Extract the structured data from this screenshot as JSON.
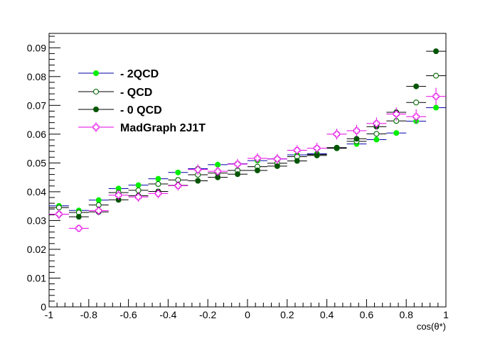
{
  "chart_data": {
    "type": "scatter",
    "title": "",
    "xlabel": "cos(θ*)",
    "ylabel": "",
    "xlim": [
      -1,
      1
    ],
    "ylim": [
      0,
      0.095
    ],
    "grid": false,
    "legend_position": "top-left",
    "x_ticks": [
      "-1",
      "-0.8",
      "-0.6",
      "-0.4",
      "-0.2",
      "0",
      "0.2",
      "0.4",
      "0.6",
      "0.8",
      "1"
    ],
    "y_ticks": [
      "0",
      "0.01",
      "0.02",
      "0.03",
      "0.04",
      "0.05",
      "0.06",
      "0.07",
      "0.08",
      "0.09"
    ],
    "x": [
      -0.95,
      -0.85,
      -0.75,
      -0.65,
      -0.55,
      -0.45,
      -0.35,
      -0.25,
      -0.15,
      -0.05,
      0.05,
      0.15,
      0.25,
      0.35,
      0.45,
      0.55,
      0.65,
      0.75,
      0.85,
      0.95
    ],
    "series": [
      {
        "name": "- 2QCD",
        "marker": "filled-circle",
        "color": "#00ee00",
        "line_color": "#0000aa",
        "values": [
          0.0351,
          0.0335,
          0.0371,
          0.0411,
          0.0423,
          0.0445,
          0.0467,
          0.048,
          0.0494,
          0.0497,
          0.0508,
          0.0514,
          0.0528,
          0.0532,
          0.0553,
          0.0566,
          0.0581,
          0.0604,
          0.0645,
          0.0692
        ]
      },
      {
        "name": "- QCD",
        "marker": "open-circle",
        "color": "#006600",
        "line_color": "#000000",
        "values": [
          0.0345,
          0.0328,
          0.0354,
          0.0397,
          0.0405,
          0.0427,
          0.0441,
          0.0459,
          0.0465,
          0.0474,
          0.0487,
          0.0499,
          0.0522,
          0.0529,
          0.0551,
          0.0575,
          0.0601,
          0.0646,
          0.071,
          0.0803
        ]
      },
      {
        "name": "- 0 QCD",
        "marker": "filled-circle",
        "color": "#005500",
        "line_color": "#000000",
        "values": [
          0.0322,
          0.0313,
          0.033,
          0.0372,
          0.0386,
          0.0401,
          0.0422,
          0.0438,
          0.045,
          0.0461,
          0.0474,
          0.0489,
          0.0507,
          0.0526,
          0.0553,
          0.0584,
          0.0626,
          0.0676,
          0.0766,
          0.0888
        ]
      },
      {
        "name": "MadGraph 2J1T",
        "marker": "open-cross",
        "color": "#e600e6",
        "line_color": "#e600e6",
        "values": [
          0.0322,
          0.0273,
          0.0334,
          0.0388,
          0.0382,
          0.0394,
          0.0421,
          0.0477,
          0.0471,
          0.0496,
          0.0516,
          0.0514,
          0.0544,
          0.0551,
          0.06,
          0.0612,
          0.0637,
          0.067,
          0.0661,
          0.0731
        ],
        "yerr": [
          0.0018,
          0.0013,
          0.0016,
          0.0017,
          0.0017,
          0.0017,
          0.0017,
          0.0018,
          0.0018,
          0.0018,
          0.0018,
          0.0018,
          0.0018,
          0.0019,
          0.0019,
          0.002,
          0.0021,
          0.0023,
          0.0025,
          0.003
        ]
      }
    ]
  }
}
